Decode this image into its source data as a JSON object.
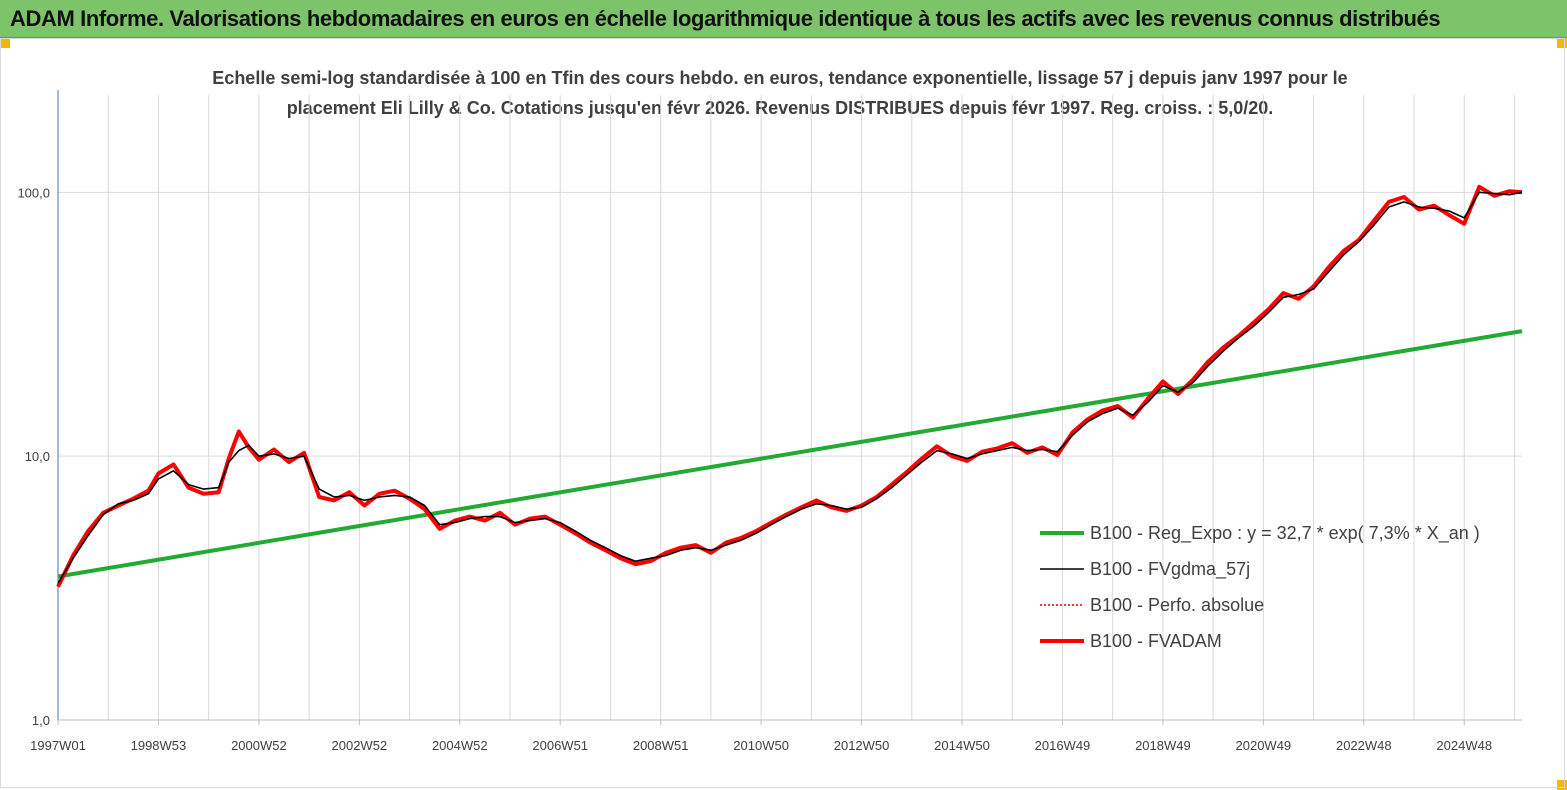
{
  "header": {
    "title": "ADAM Informe. Valorisations hebdomadaires en euros en échelle logarithmique identique à tous les actifs avec les revenus connus distribués"
  },
  "chart_data": {
    "type": "line",
    "title_line1": "Echelle semi-log standardisée à 100 en Tfin des cours hebdo. en euros, tendance exponentielle, lissage 57 j depuis janv 1997 pour le",
    "title_line2": "placement Eli Lilly & Co. Cotations jusqu'en févr 2026. Revenus DISTRIBUES depuis févr 1997. Reg. croiss. : 5,0/20.",
    "y_scale": "log",
    "ylim": [
      1,
      180
    ],
    "y_ticks": [
      {
        "value": 1,
        "label": "1,0"
      },
      {
        "value": 10,
        "label": "10,0"
      },
      {
        "value": 100,
        "label": "100,0"
      }
    ],
    "xlim": [
      1997.0,
      2026.15
    ],
    "x_ticks": [
      {
        "value": 1997.0,
        "label": "1997W01"
      },
      {
        "value": 1999.0,
        "label": "1998W53"
      },
      {
        "value": 2001.0,
        "label": "2000W52"
      },
      {
        "value": 2003.0,
        "label": "2002W52"
      },
      {
        "value": 2005.0,
        "label": "2004W52"
      },
      {
        "value": 2007.0,
        "label": "2006W51"
      },
      {
        "value": 2009.0,
        "label": "2008W51"
      },
      {
        "value": 2011.0,
        "label": "2010W50"
      },
      {
        "value": 2013.0,
        "label": "2012W50"
      },
      {
        "value": 2015.0,
        "label": "2014W50"
      },
      {
        "value": 2017.0,
        "label": "2016W49"
      },
      {
        "value": 2019.0,
        "label": "2018W49"
      },
      {
        "value": 2021.0,
        "label": "2020W49"
      },
      {
        "value": 2023.0,
        "label": "2022W48"
      },
      {
        "value": 2025.0,
        "label": "2024W48"
      }
    ],
    "grid": "vertical",
    "legend_position": "right-middle",
    "series": [
      {
        "name": "B100 - Reg_Expo : y = 32,7 * exp( 7,3% *  X_an )",
        "color": "#22aa33",
        "style": "solid-thick",
        "x": [
          1997.0,
          2026.15
        ],
        "y": [
          3.5,
          29.8
        ]
      },
      {
        "name": "B100 - FVgdma_57j",
        "color": "#000000",
        "style": "solid-thin",
        "x": [
          1997.0,
          1997.3,
          1997.6,
          1997.9,
          1998.2,
          1998.5,
          1998.8,
          1999.0,
          1999.3,
          1999.6,
          1999.9,
          2000.2,
          2000.4,
          2000.6,
          2000.8,
          2001.0,
          2001.3,
          2001.6,
          2001.9,
          2002.2,
          2002.5,
          2002.8,
          2003.1,
          2003.4,
          2003.7,
          2004.0,
          2004.3,
          2004.6,
          2004.9,
          2005.2,
          2005.5,
          2005.8,
          2006.1,
          2006.4,
          2006.7,
          2007.0,
          2007.3,
          2007.6,
          2007.9,
          2008.2,
          2008.5,
          2008.8,
          2009.1,
          2009.4,
          2009.7,
          2010.0,
          2010.3,
          2010.6,
          2010.9,
          2011.2,
          2011.5,
          2011.8,
          2012.1,
          2012.4,
          2012.7,
          2013.0,
          2013.3,
          2013.6,
          2013.9,
          2014.2,
          2014.5,
          2014.8,
          2015.1,
          2015.4,
          2015.7,
          2016.0,
          2016.3,
          2016.6,
          2016.9,
          2017.2,
          2017.5,
          2017.8,
          2018.1,
          2018.4,
          2018.7,
          2019.0,
          2019.3,
          2019.6,
          2019.9,
          2020.2,
          2020.5,
          2020.8,
          2021.1,
          2021.4,
          2021.7,
          2022.0,
          2022.3,
          2022.6,
          2022.9,
          2023.2,
          2023.5,
          2023.8,
          2024.1,
          2024.4,
          2024.7,
          2025.0,
          2025.3,
          2025.6,
          2025.9,
          2026.15
        ],
        "y": [
          3.3,
          4.1,
          5.0,
          6.0,
          6.6,
          6.8,
          7.2,
          8.2,
          8.8,
          7.8,
          7.5,
          7.6,
          9.5,
          10.5,
          11.0,
          10.0,
          10.2,
          9.8,
          10.0,
          7.5,
          7.0,
          7.1,
          6.8,
          7.0,
          7.1,
          7.0,
          6.5,
          5.5,
          5.6,
          5.8,
          5.9,
          5.9,
          5.6,
          5.7,
          5.8,
          5.6,
          5.2,
          4.8,
          4.5,
          4.2,
          4.0,
          4.1,
          4.2,
          4.4,
          4.5,
          4.4,
          4.6,
          4.8,
          5.1,
          5.5,
          5.9,
          6.3,
          6.6,
          6.5,
          6.3,
          6.4,
          6.9,
          7.6,
          8.5,
          9.5,
          10.5,
          10.2,
          9.8,
          10.2,
          10.5,
          10.8,
          10.5,
          10.6,
          10.4,
          12.0,
          13.5,
          14.5,
          15.2,
          14.3,
          16.0,
          18.5,
          17.5,
          19.0,
          22.0,
          25.0,
          28.0,
          31.0,
          35.0,
          40.0,
          41.0,
          43.0,
          50.0,
          58.0,
          65.0,
          75.0,
          88.0,
          92.0,
          88.0,
          87.0,
          85.0,
          80.0,
          100.0,
          99.0,
          98.0,
          100.0
        ]
      },
      {
        "name": "B100 - Perfo. absolue",
        "color": "#e00000",
        "style": "dotted",
        "x": [],
        "y": []
      },
      {
        "name": "B100 - FVADAM",
        "color": "#ff0000",
        "style": "solid-thick",
        "x": [
          1997.0,
          1997.3,
          1997.6,
          1997.9,
          1998.2,
          1998.5,
          1998.8,
          1999.0,
          1999.3,
          1999.6,
          1999.9,
          2000.2,
          2000.4,
          2000.6,
          2000.8,
          2001.0,
          2001.3,
          2001.6,
          2001.9,
          2002.2,
          2002.5,
          2002.8,
          2003.1,
          2003.4,
          2003.7,
          2004.0,
          2004.3,
          2004.6,
          2004.9,
          2005.2,
          2005.5,
          2005.8,
          2006.1,
          2006.4,
          2006.7,
          2007.0,
          2007.3,
          2007.6,
          2007.9,
          2008.2,
          2008.5,
          2008.8,
          2009.1,
          2009.4,
          2009.7,
          2010.0,
          2010.3,
          2010.6,
          2010.9,
          2011.2,
          2011.5,
          2011.8,
          2012.1,
          2012.4,
          2012.7,
          2013.0,
          2013.3,
          2013.6,
          2013.9,
          2014.2,
          2014.5,
          2014.8,
          2015.1,
          2015.4,
          2015.7,
          2016.0,
          2016.3,
          2016.6,
          2016.9,
          2017.2,
          2017.5,
          2017.8,
          2018.1,
          2018.4,
          2018.7,
          2019.0,
          2019.3,
          2019.6,
          2019.9,
          2020.2,
          2020.5,
          2020.8,
          2021.1,
          2021.4,
          2021.7,
          2022.0,
          2022.3,
          2022.6,
          2022.9,
          2023.2,
          2023.5,
          2023.8,
          2024.1,
          2024.4,
          2024.7,
          2025.0,
          2025.3,
          2025.6,
          2025.9,
          2026.15
        ],
        "y": [
          3.2,
          4.2,
          5.2,
          6.1,
          6.5,
          6.9,
          7.4,
          8.6,
          9.3,
          7.6,
          7.2,
          7.3,
          9.8,
          12.4,
          10.8,
          9.7,
          10.6,
          9.5,
          10.3,
          7.0,
          6.8,
          7.3,
          6.5,
          7.2,
          7.4,
          6.9,
          6.3,
          5.3,
          5.7,
          5.9,
          5.7,
          6.1,
          5.5,
          5.8,
          5.9,
          5.5,
          5.1,
          4.7,
          4.4,
          4.1,
          3.9,
          4.0,
          4.3,
          4.5,
          4.6,
          4.3,
          4.7,
          4.9,
          5.2,
          5.6,
          6.0,
          6.4,
          6.8,
          6.4,
          6.2,
          6.5,
          7.0,
          7.8,
          8.7,
          9.8,
          10.9,
          10.0,
          9.6,
          10.4,
          10.7,
          11.2,
          10.3,
          10.8,
          10.1,
          12.3,
          13.8,
          14.9,
          15.5,
          14.0,
          16.5,
          19.2,
          17.2,
          19.5,
          22.8,
          25.8,
          28.5,
          32.0,
          36.0,
          41.5,
          39.5,
          44.0,
          52.0,
          60.0,
          66.0,
          78.0,
          92.0,
          96.0,
          86.0,
          89.0,
          82.0,
          76.0,
          105.0,
          97.0,
          101.0,
          100.0
        ]
      }
    ]
  }
}
